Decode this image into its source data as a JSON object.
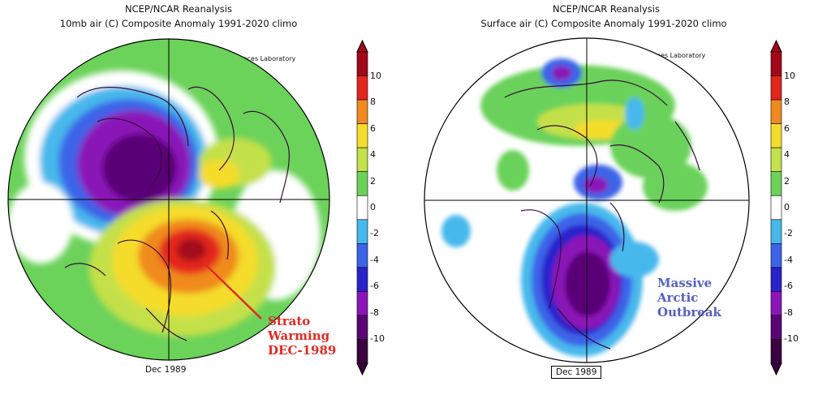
{
  "colors": {
    "scale": [
      "#3b003f",
      "#5a0577",
      "#8b16b8",
      "#2b22cc",
      "#3d63e8",
      "#46b8ec",
      "#ffffff",
      "#6bd25a",
      "#c4e04a",
      "#f5dc2a",
      "#f08a1e",
      "#e3261a",
      "#a3071a"
    ],
    "annotation_red": "#e02a22",
    "annotation_blue": "#5560c0"
  },
  "left": {
    "title_line1": "NCEP/NCAR Reanalysis",
    "title_line2": "10mb air (C) Composite Anomaly 1991-2020 climo",
    "credit": "NOAA Physical Sciences Laboratory",
    "date": "Dec 1989",
    "annotation_lines": [
      "Strato",
      "Warming",
      "DEC-1989"
    ]
  },
  "right": {
    "title_line1": "NCEP/NCAR Reanalysis",
    "title_line2": "Surface air (C) Composite Anomaly 1991-2020 climo",
    "credit": "NOAA Physical Sciences Laboratory",
    "date": "Dec 1989",
    "annotation_lines": [
      "Massive",
      "Arctic",
      "Outbreak"
    ]
  },
  "colorbar": {
    "ticks": [
      "10",
      "8",
      "6",
      "4",
      "2",
      "0",
      "-2",
      "-4",
      "-6",
      "-8",
      "-10"
    ]
  }
}
